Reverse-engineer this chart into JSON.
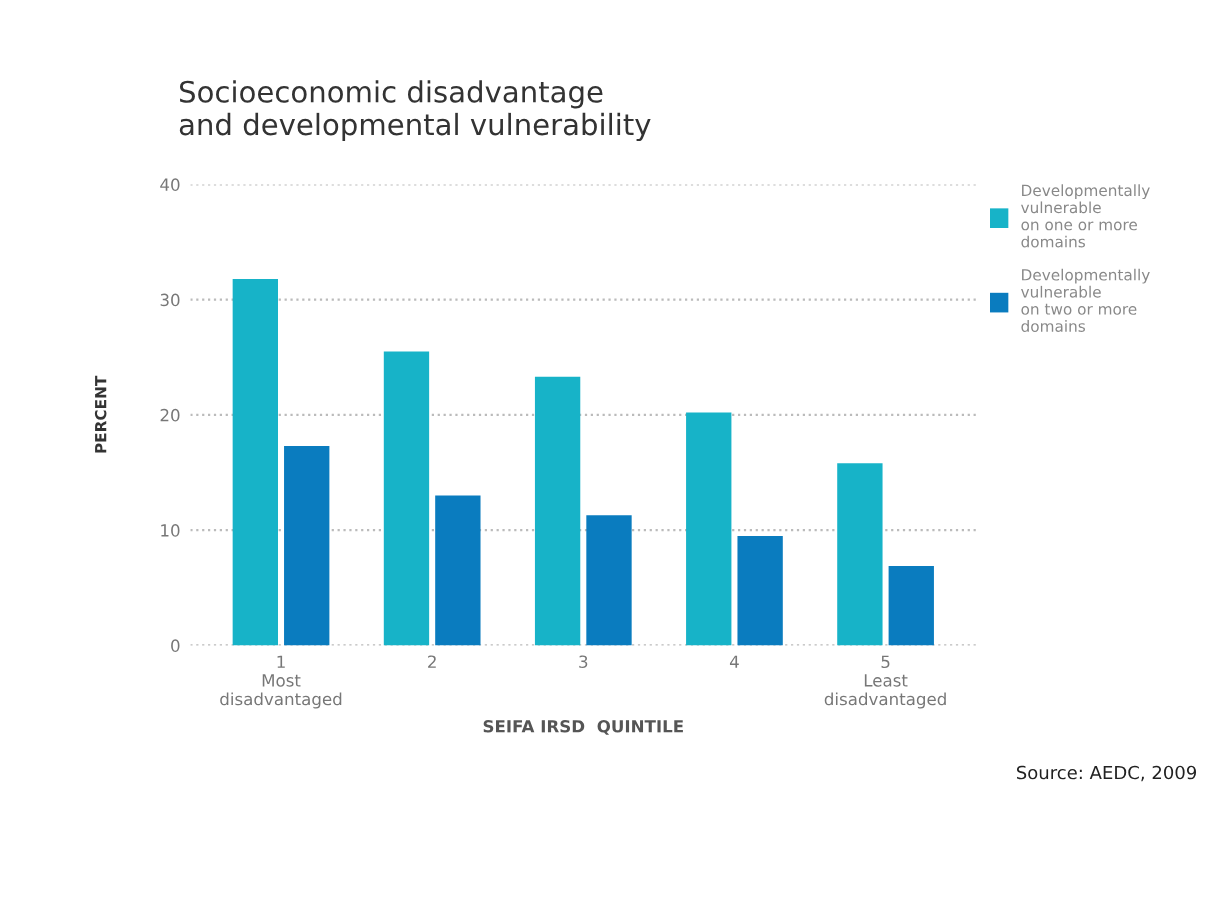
{
  "chart_data": {
    "type": "bar",
    "title": "Socioeconomic disadvantage\nand developmental vulnerability",
    "xlabel": "SEIFA IRSD  QUINTILE",
    "ylabel": "PERCENT",
    "categories": [
      "1\nMost\ndisadvantaged",
      "2",
      "3",
      "4",
      "5\nLeast\ndisadvantaged"
    ],
    "series": [
      {
        "name": "Developmentally\nvulnerable\non one or more\ndomains",
        "color": "#17b3c8",
        "values": [
          31.8,
          25.5,
          23.3,
          20.2,
          15.8
        ]
      },
      {
        "name": "Developmentally\nvulnerable\non two or more\ndomains",
        "color": "#0a7cbf",
        "values": [
          17.3,
          13.0,
          11.3,
          9.5,
          6.9
        ]
      }
    ],
    "ylim": [
      0,
      40
    ],
    "yticks": [
      0,
      10,
      20,
      30,
      40
    ],
    "grid": "y",
    "legend": "top right",
    "annotations": [
      "Source: AEDC, 2009"
    ]
  }
}
